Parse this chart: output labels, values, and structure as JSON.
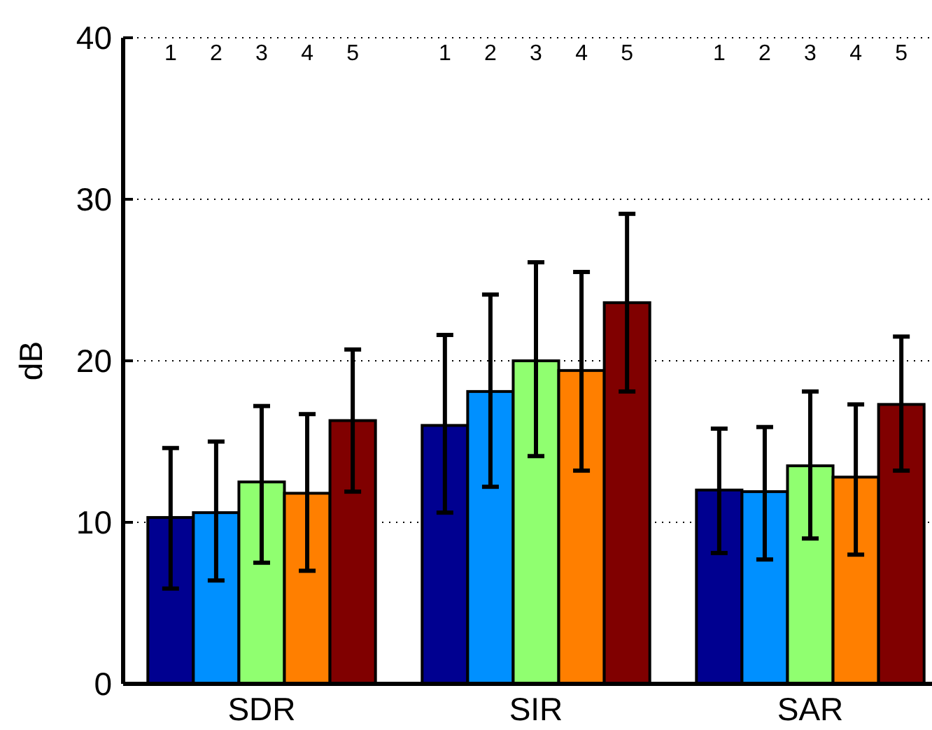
{
  "chart_data": {
    "type": "bar",
    "ylabel": "dB",
    "categories": [
      "SDR",
      "SIR",
      "SAR"
    ],
    "ylim": [
      0,
      40
    ],
    "yticks": [
      0,
      10,
      20,
      30,
      40
    ],
    "grid": "y",
    "series": [
      {
        "color": "#000090",
        "values": [
          10.3,
          16.0,
          12.0
        ],
        "errors": [
          [
            5.9,
            14.6
          ],
          [
            10.6,
            21.6
          ],
          [
            8.1,
            15.8
          ]
        ]
      },
      {
        "color": "#0090ff",
        "values": [
          10.6,
          18.1,
          11.9
        ],
        "errors": [
          [
            6.4,
            15.0
          ],
          [
            12.2,
            24.1
          ],
          [
            7.7,
            15.9
          ]
        ]
      },
      {
        "color": "#90ff70",
        "values": [
          12.5,
          20.0,
          13.5
        ],
        "errors": [
          [
            7.5,
            17.2
          ],
          [
            14.1,
            26.1
          ],
          [
            9.0,
            18.1
          ]
        ]
      },
      {
        "color": "#ff7f00",
        "values": [
          11.8,
          19.4,
          12.8
        ],
        "errors": [
          [
            7.0,
            16.7
          ],
          [
            13.2,
            25.5
          ],
          [
            8.0,
            17.3
          ]
        ]
      },
      {
        "color": "#800000",
        "values": [
          16.3,
          23.6,
          17.3
        ],
        "errors": [
          [
            11.9,
            20.7
          ],
          [
            18.1,
            29.1
          ],
          [
            13.2,
            21.5
          ]
        ]
      }
    ],
    "annotations": [
      "1",
      "2",
      "3",
      "4",
      "5",
      "1",
      "2",
      "3",
      "4",
      "5",
      "1",
      "2",
      "3",
      "4",
      "5"
    ]
  }
}
